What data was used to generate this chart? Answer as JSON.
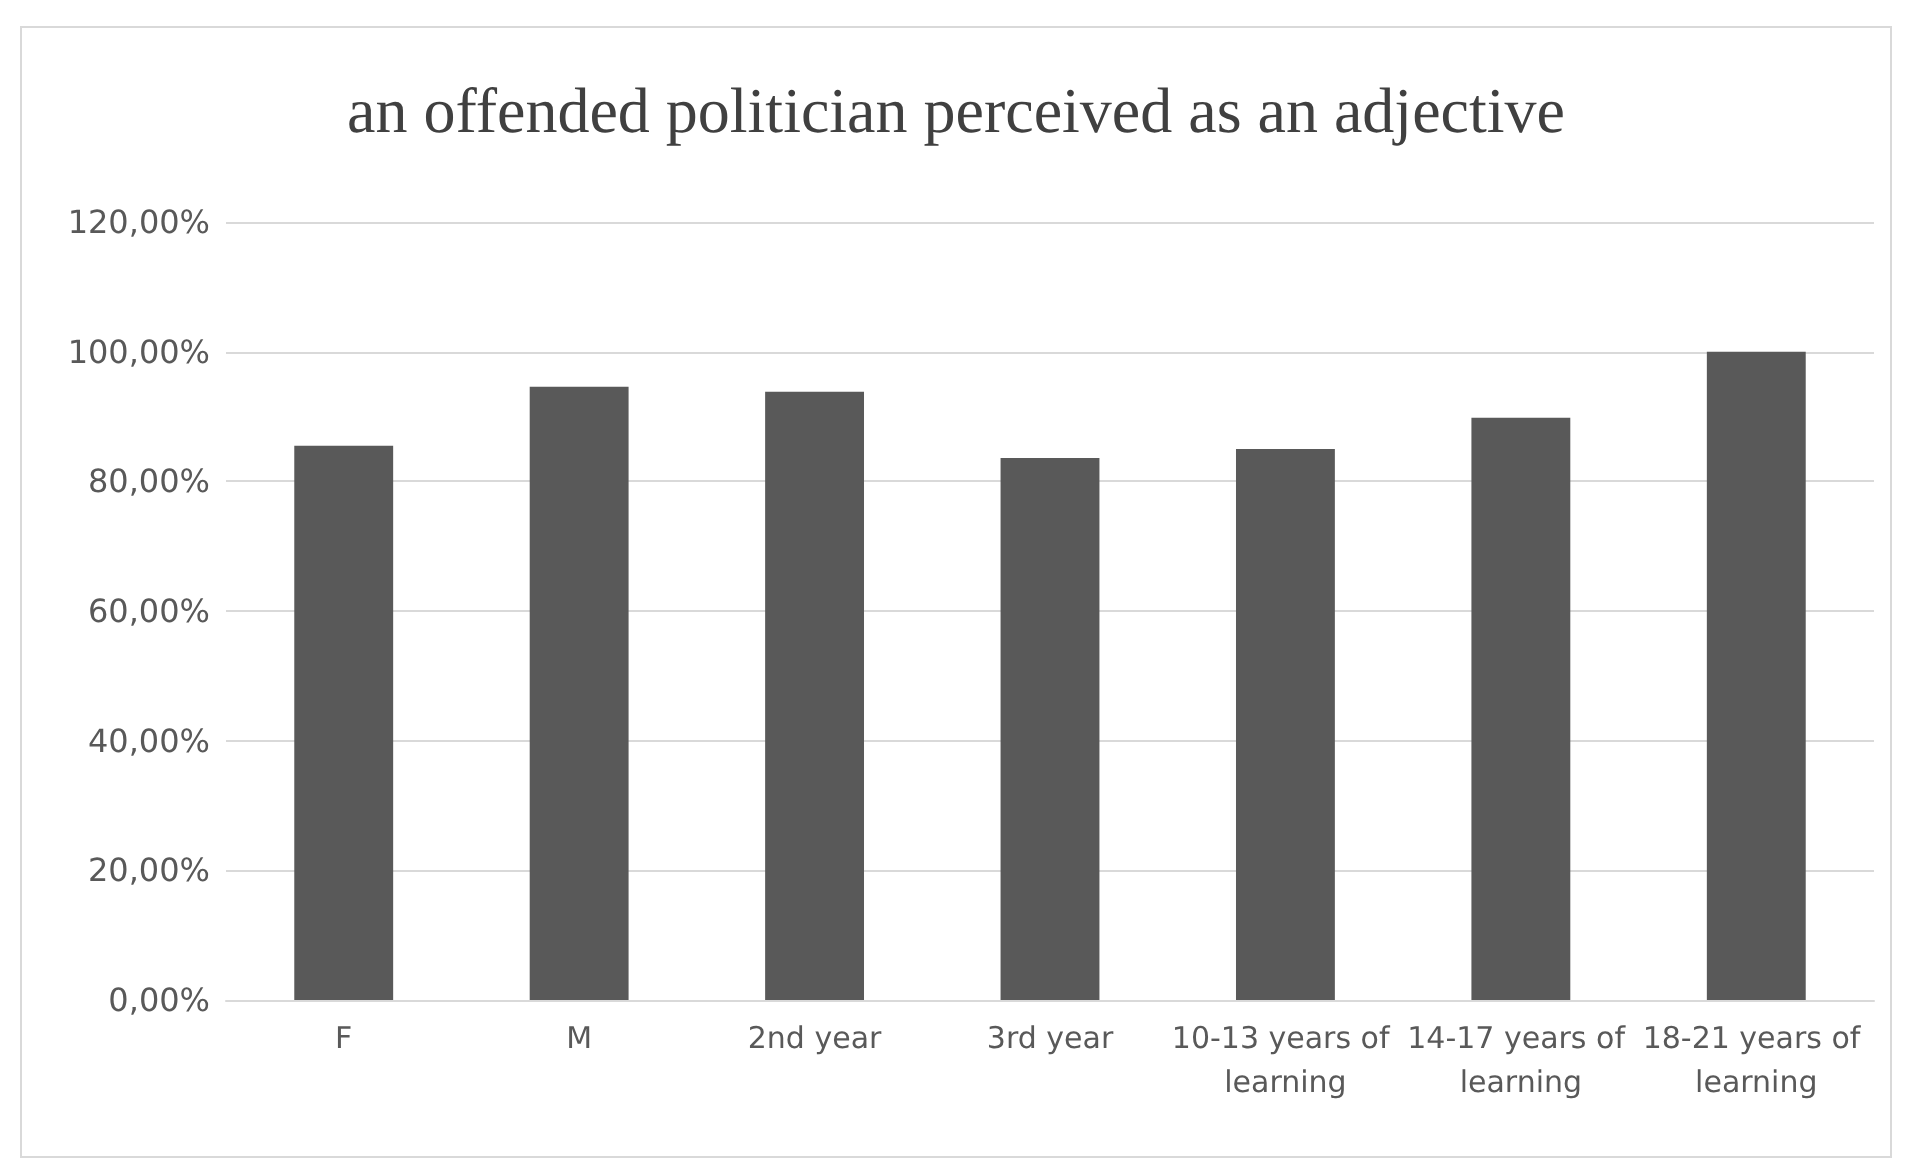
{
  "chart_data": {
    "type": "bar",
    "title": "an offended politician perceived as an adjective",
    "categories": [
      "F",
      "M",
      "2nd year",
      "3rd year",
      "10-13 years of learning",
      "14-17 years of learning",
      "18-21 years of learning"
    ],
    "values": [
      85.5,
      94.6,
      93.8,
      83.6,
      85.0,
      89.8,
      100
    ],
    "color": "#595959",
    "ylim": [
      0,
      120
    ],
    "yticks": [
      {
        "value": 0,
        "label": "0,00%"
      },
      {
        "value": 20,
        "label": "20,00%"
      },
      {
        "value": 40,
        "label": "40,00%"
      },
      {
        "value": 60,
        "label": "60,00%"
      },
      {
        "value": 80,
        "label": "80,00%"
      },
      {
        "value": 100,
        "label": "100,00%"
      },
      {
        "value": 120,
        "label": "120,00%"
      }
    ],
    "grid": "y"
  }
}
